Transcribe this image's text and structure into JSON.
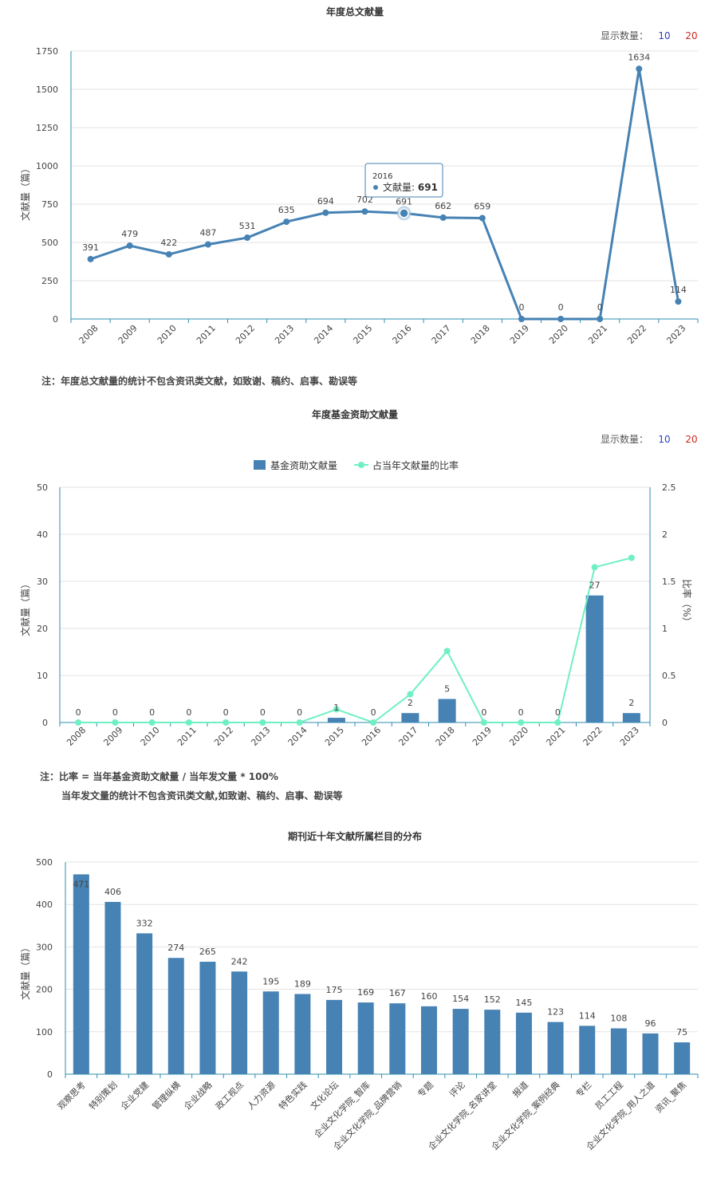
{
  "selector": {
    "label": "显示数量：",
    "opt_a": "10",
    "opt_b": "20"
  },
  "chart_data": [
    {
      "type": "line",
      "title": "年度总文献量",
      "ylabel": "文献量（篇）",
      "x": [
        "2008",
        "2009",
        "2010",
        "2011",
        "2012",
        "2013",
        "2014",
        "2015",
        "2016",
        "2017",
        "2018",
        "2019",
        "2020",
        "2021",
        "2022",
        "2023"
      ],
      "values": [
        391,
        479,
        422,
        487,
        531,
        635,
        694,
        702,
        691,
        662,
        659,
        0,
        0,
        0,
        1634,
        114
      ],
      "yticks": [
        0,
        250,
        500,
        750,
        1000,
        1250,
        1500,
        1750
      ],
      "ylim": [
        0,
        1750
      ],
      "color": "#4682b4",
      "series": [
        {
          "name": "文献量",
          "values": [
            391,
            479,
            422,
            487,
            531,
            635,
            694,
            702,
            691,
            662,
            659,
            0,
            0,
            0,
            1634,
            114
          ]
        }
      ],
      "tooltip": {
        "year": "2016",
        "label": "文献量",
        "value": "691"
      },
      "note": "注：年度总文献量的统计不包含资讯类文献，如致谢、稿约、启事、勘误等"
    },
    {
      "type": "bar",
      "title": "年度基金资助文献量",
      "ylabel": "文献量（篇）",
      "y2label": "比率（%）",
      "x": [
        "2008",
        "2009",
        "2010",
        "2011",
        "2012",
        "2013",
        "2014",
        "2015",
        "2016",
        "2017",
        "2018",
        "2019",
        "2020",
        "2021",
        "2022",
        "2023"
      ],
      "yticks": [
        0,
        10,
        20,
        30,
        40,
        50
      ],
      "ylim": [
        0,
        50
      ],
      "y2ticks": [
        "0",
        "0.5",
        "1",
        "1.5",
        "2",
        "2.5"
      ],
      "y2lim": [
        0,
        2.5
      ],
      "series": [
        {
          "name": "基金资助文献量",
          "type": "bar",
          "color": "#4682b4",
          "values": [
            0,
            0,
            0,
            0,
            0,
            0,
            0,
            1,
            0,
            2,
            5,
            0,
            0,
            0,
            27,
            2
          ]
        },
        {
          "name": "占当年文献量的比率",
          "type": "line",
          "color": "#6ff0c2",
          "values": [
            0,
            0,
            0,
            0,
            0,
            0,
            0,
            0.14,
            0,
            0.3,
            0.76,
            0,
            0,
            0,
            1.65,
            1.75
          ]
        }
      ],
      "note1": "注：比率 = 当年基金资助文献量 / 当年发文量 * 100%",
      "note2": "当年发文量的统计不包含资讯类文献,如致谢、稿约、启事、勘误等"
    },
    {
      "type": "bar",
      "title": "期刊近十年文献所属栏目的分布",
      "ylabel": "文献量（篇）",
      "categories": [
        "观察思考",
        "特别策划",
        "企业党建",
        "管理纵横",
        "企业战略",
        "政工视点",
        "人力资源",
        "特色实践",
        "文化论坛",
        "企业文化学院_智库",
        "企业文化学院_品牌营销",
        "专题",
        "评论",
        "企业文化学院_名家讲堂",
        "报道",
        "企业文化学院_案例经典",
        "专栏",
        "员工工程",
        "企业文化学院_用人之道",
        "资讯_聚焦"
      ],
      "values": [
        471,
        406,
        332,
        274,
        265,
        242,
        195,
        189,
        175,
        169,
        167,
        160,
        154,
        152,
        145,
        123,
        114,
        108,
        96,
        75
      ],
      "yticks": [
        0,
        100,
        200,
        300,
        400,
        500
      ],
      "ylim": [
        0,
        500
      ],
      "color": "#4682b4"
    }
  ]
}
